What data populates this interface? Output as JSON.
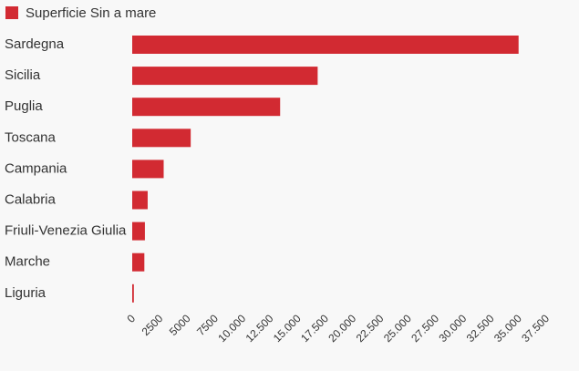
{
  "chart_data": {
    "type": "bar",
    "orientation": "horizontal",
    "series": [
      {
        "name": "Superficie Sin a mare",
        "values": [
          35000,
          16800,
          13400,
          5300,
          2850,
          1400,
          1150,
          1100,
          150
        ]
      }
    ],
    "categories": [
      "Sardegna",
      "Sicilia",
      "Puglia",
      "Toscana",
      "Campania",
      "Calabria",
      "Friuli-Venezia Giulia",
      "Marche",
      "Liguria"
    ],
    "xlim": [
      0,
      37500
    ],
    "x_ticks": [
      "0",
      "2500",
      "5000",
      "7500",
      "10.000",
      "12.500",
      "15.000",
      "17.500",
      "20.000",
      "22.500",
      "25.000",
      "27.500",
      "30.000",
      "32.500",
      "35.000",
      "37.500"
    ],
    "grid": false,
    "legend_position": "top-left",
    "colors": {
      "bar": "#d22a32",
      "text": "#333333",
      "background": "#f8f8f8"
    }
  }
}
